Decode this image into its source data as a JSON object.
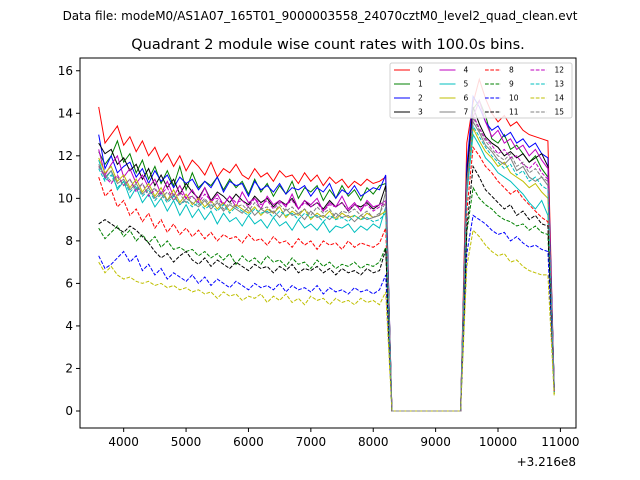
{
  "figure": {
    "suptitle": "Data file: modeM0/AS1A07_165T01_9000003558_24070cztM0_level2_quad_clean.evt"
  },
  "chart_data": {
    "type": "line",
    "title": "Quadrant 2 module wise count rates with 100.0s bins.",
    "xlabel": "",
    "ylabel": "",
    "x_offset_label": "+3.216e8",
    "xlim": [
      3300,
      11250
    ],
    "ylim": [
      -0.8,
      16.6
    ],
    "xticks": [
      4000,
      5000,
      6000,
      7000,
      8000,
      9000,
      10000,
      11000
    ],
    "yticks": [
      0,
      2,
      4,
      6,
      8,
      10,
      12,
      14,
      16
    ],
    "grid": false,
    "legend": {
      "position": "top-right",
      "columns": 4
    },
    "segments": [
      {
        "start": 3600,
        "end": 8200,
        "step": 100
      },
      {
        "start": 8300,
        "end": 9400,
        "step": 100
      },
      {
        "start": 9500,
        "end": 10800,
        "step": 100
      },
      {
        "start": 10900,
        "end": 10900,
        "step": 100
      }
    ],
    "series": [
      {
        "name": "0",
        "color": "#ff0000",
        "dashed": false,
        "seg1": [
          14.3,
          12.6,
          13.0,
          13.4,
          12.5,
          12.9,
          12.2,
          12.7,
          12.0,
          12.4,
          11.7,
          12.1,
          11.5,
          12.0,
          11.3,
          11.8,
          11.5,
          11.1,
          11.7,
          11.0,
          11.4,
          11.2,
          11.6,
          11.1,
          10.9,
          11.4,
          11.0,
          11.2,
          10.8,
          11.3,
          11.0,
          11.1,
          10.7,
          11.2,
          10.8,
          11.1,
          10.6,
          11.0,
          10.7,
          10.9,
          10.5,
          10.8,
          10.6,
          10.9,
          10.7,
          10.8,
          11.0
        ],
        "seg3": [
          12.6,
          14.5,
          15.6,
          14.7,
          14.0,
          13.6,
          13.9,
          13.4,
          13.6,
          13.2,
          13.0,
          12.9,
          12.8,
          12.7
        ],
        "end": 1.0
      },
      {
        "name": "1",
        "color": "#008000",
        "dashed": false,
        "seg1": [
          12.2,
          11.6,
          12.0,
          12.7,
          11.7,
          12.1,
          11.2,
          11.8,
          10.9,
          11.5,
          10.7,
          11.3,
          10.6,
          11.5,
          10.4,
          11.2,
          10.5,
          10.8,
          10.6,
          11.0,
          10.4,
          10.9,
          10.5,
          10.8,
          10.2,
          10.9,
          10.3,
          10.7,
          10.1,
          10.6,
          10.2,
          10.8,
          10.0,
          10.5,
          10.3,
          10.6,
          9.9,
          10.4,
          10.0,
          10.6,
          10.1,
          10.4,
          9.9,
          10.5,
          10.2,
          10.6,
          10.7
        ],
        "seg3": [
          11.2,
          14.2,
          14.6,
          13.9,
          12.8,
          12.6,
          13.0,
          12.3,
          12.5,
          12.1,
          11.7,
          12.0,
          11.4,
          11.0
        ],
        "end": 1.2
      },
      {
        "name": "2",
        "color": "#0000ff",
        "dashed": false,
        "seg1": [
          13.0,
          11.4,
          12.0,
          11.2,
          11.5,
          11.7,
          11.0,
          11.4,
          10.7,
          11.3,
          10.8,
          11.1,
          10.5,
          11.0,
          10.7,
          10.9,
          10.4,
          10.8,
          10.5,
          11.0,
          10.3,
          10.8,
          10.6,
          10.7,
          10.1,
          10.8,
          10.4,
          10.6,
          10.3,
          10.7,
          10.2,
          10.5,
          10.4,
          10.6,
          10.1,
          10.5,
          10.3,
          10.7,
          10.0,
          10.4,
          10.2,
          10.6,
          10.1,
          10.3,
          10.5,
          10.4,
          11.1
        ],
        "seg3": [
          11.5,
          14.8,
          14.3,
          13.6,
          13.2,
          13.4,
          12.9,
          13.1,
          12.6,
          12.8,
          12.4,
          12.6,
          12.1,
          11.9
        ],
        "end": 1.1
      },
      {
        "name": "3",
        "color": "#000000",
        "dashed": false,
        "seg1": [
          12.6,
          12.1,
          12.3,
          11.6,
          11.9,
          11.3,
          11.6,
          10.9,
          11.4,
          10.6,
          11.1,
          10.5,
          10.9,
          10.2,
          10.7,
          10.3,
          10.0,
          10.5,
          9.9,
          10.3,
          10.1,
          9.8,
          10.2,
          9.9,
          9.7,
          10.1,
          9.8,
          10.0,
          9.6,
          9.9,
          9.7,
          10.0,
          9.5,
          9.9,
          9.6,
          9.8,
          9.5,
          9.9,
          9.6,
          9.8,
          9.4,
          9.7,
          9.6,
          9.8,
          9.5,
          9.7,
          10.6
        ],
        "seg3": [
          11.0,
          14.3,
          13.5,
          12.9,
          12.6,
          12.4,
          12.0,
          12.2,
          11.9,
          12.1,
          11.7,
          11.9,
          12.1,
          11.5
        ],
        "end": 1.1
      },
      {
        "name": "4",
        "color": "#bf00bf",
        "dashed": false,
        "seg1": [
          12.3,
          11.1,
          11.6,
          12.0,
          11.0,
          11.4,
          10.7,
          11.1,
          10.5,
          10.9,
          10.2,
          10.8,
          10.1,
          10.6,
          10.0,
          10.4,
          9.9,
          10.5,
          9.8,
          10.2,
          9.7,
          10.1,
          9.6,
          10.3,
          9.8,
          10.0,
          9.5,
          10.1,
          9.7,
          9.9,
          9.6,
          10.2,
          9.5,
          9.9,
          9.7,
          10.0,
          9.4,
          9.8,
          9.6,
          10.1,
          9.5,
          9.8,
          9.4,
          9.9,
          9.6,
          9.7,
          9.9
        ],
        "seg3": [
          10.6,
          13.8,
          14.6,
          13.6,
          12.9,
          13.2,
          12.6,
          12.8,
          12.3,
          12.5,
          12.0,
          12.3,
          11.8,
          11.4
        ],
        "end": 1.0
      },
      {
        "name": "5",
        "color": "#00bfbf",
        "dashed": false,
        "seg1": [
          11.8,
          10.9,
          11.3,
          10.4,
          10.8,
          10.0,
          10.5,
          9.8,
          10.2,
          9.6,
          10.0,
          9.4,
          9.9,
          9.2,
          9.7,
          9.1,
          9.5,
          9.0,
          9.4,
          8.8,
          9.3,
          8.9,
          9.1,
          8.7,
          9.2,
          8.8,
          9.0,
          8.6,
          9.1,
          8.7,
          8.9,
          8.5,
          9.0,
          8.6,
          8.8,
          8.5,
          8.9,
          8.4,
          8.7,
          8.6,
          8.8,
          8.4,
          8.7,
          8.5,
          8.8,
          8.6,
          9.6
        ],
        "seg3": [
          10.2,
          13.0,
          12.5,
          11.9,
          11.6,
          11.2,
          11.0,
          10.8,
          10.5,
          10.2,
          9.8,
          9.5,
          9.9,
          9.2
        ],
        "end": 0.9
      },
      {
        "name": "6",
        "color": "#bfbf00",
        "dashed": false,
        "seg1": [
          11.9,
          11.2,
          11.5,
          10.8,
          11.1,
          10.5,
          10.9,
          10.3,
          10.7,
          10.1,
          10.5,
          9.9,
          10.4,
          9.8,
          10.2,
          9.7,
          10.0,
          9.6,
          9.9,
          9.5,
          9.8,
          9.4,
          9.7,
          9.5,
          9.3,
          9.6,
          9.2,
          9.5,
          9.3,
          9.6,
          9.1,
          9.4,
          9.2,
          9.5,
          9.0,
          9.3,
          9.1,
          9.4,
          9.0,
          9.3,
          9.1,
          9.2,
          9.0,
          9.3,
          9.1,
          9.2,
          9.4
        ],
        "seg3": [
          10.4,
          13.3,
          12.7,
          12.2,
          11.9,
          11.5,
          11.7,
          11.2,
          11.0,
          10.8,
          10.5,
          10.7,
          10.3,
          10.0
        ],
        "end": 0.8
      },
      {
        "name": "7",
        "color": "#808080",
        "dashed": false,
        "seg1": [
          11.6,
          11.0,
          11.3,
          10.7,
          10.9,
          10.4,
          10.7,
          10.2,
          10.5,
          10.0,
          10.3,
          9.9,
          10.2,
          9.7,
          10.0,
          9.8,
          9.6,
          9.9,
          9.5,
          9.8,
          9.4,
          9.7,
          9.5,
          9.3,
          9.6,
          9.2,
          9.5,
          9.3,
          9.4,
          9.1,
          9.5,
          9.2,
          9.3,
          9.0,
          9.4,
          9.1,
          9.2,
          9.0,
          9.3,
          9.1,
          9.2,
          8.9,
          9.2,
          9.0,
          9.1,
          9.2,
          10.3
        ],
        "seg3": [
          10.8,
          13.6,
          13.1,
          12.5,
          12.2,
          11.8,
          11.6,
          11.9,
          11.3,
          11.5,
          11.0,
          10.8,
          11.0,
          10.6
        ],
        "end": 1.0
      },
      {
        "name": "8",
        "color": "#ff0000",
        "dashed": true,
        "seg1": [
          11.0,
          10.1,
          10.4,
          9.6,
          9.9,
          9.2,
          9.5,
          8.9,
          9.3,
          8.6,
          9.0,
          8.4,
          8.8,
          8.3,
          8.6,
          8.2,
          8.5,
          8.1,
          8.4,
          8.0,
          8.3,
          8.1,
          8.2,
          7.9,
          8.3,
          8.0,
          8.1,
          7.8,
          8.2,
          7.9,
          8.0,
          7.7,
          8.1,
          7.8,
          8.0,
          7.6,
          8.0,
          7.8,
          7.9,
          7.6,
          8.0,
          7.7,
          7.9,
          7.8,
          7.7,
          7.9,
          8.6
        ],
        "seg3": [
          9.4,
          12.4,
          12.0,
          11.5,
          11.2,
          10.8,
          10.5,
          10.2,
          10.4,
          10.0,
          9.7,
          9.4,
          9.1,
          8.9
        ],
        "end": 0.9
      },
      {
        "name": "9",
        "color": "#008000",
        "dashed": true,
        "seg1": [
          8.6,
          8.1,
          8.4,
          8.7,
          8.2,
          8.5,
          8.0,
          8.3,
          7.9,
          8.2,
          7.7,
          8.0,
          7.6,
          7.7,
          7.5,
          7.6,
          7.3,
          7.5,
          7.2,
          7.4,
          7.1,
          7.4,
          6.9,
          7.3,
          7.0,
          7.2,
          6.9,
          7.3,
          7.0,
          7.1,
          6.8,
          7.2,
          6.9,
          7.0,
          6.7,
          7.1,
          6.8,
          7.0,
          6.7,
          6.9,
          6.8,
          7.0,
          6.7,
          6.9,
          6.8,
          7.0,
          7.7
        ],
        "seg3": [
          8.4,
          10.5,
          10.0,
          9.7,
          9.5,
          9.2,
          9.0,
          8.9,
          8.7,
          8.8,
          8.5,
          8.7,
          8.4,
          8.3
        ],
        "end": 0.8
      },
      {
        "name": "10",
        "color": "#0000ff",
        "dashed": true,
        "seg1": [
          7.3,
          6.7,
          6.9,
          7.2,
          7.5,
          7.0,
          7.3,
          6.6,
          6.9,
          6.4,
          6.7,
          6.2,
          6.5,
          6.3,
          6.1,
          6.4,
          6.0,
          6.3,
          5.9,
          6.2,
          6.0,
          5.8,
          6.1,
          5.9,
          5.7,
          6.0,
          5.8,
          5.9,
          5.7,
          6.0,
          5.6,
          5.9,
          5.7,
          5.8,
          5.6,
          5.9,
          5.5,
          5.8,
          5.6,
          5.7,
          5.5,
          5.8,
          5.6,
          5.7,
          5.5,
          5.7,
          6.4
        ],
        "seg3": [
          7.4,
          9.2,
          9.0,
          8.8,
          8.5,
          8.3,
          8.4,
          8.0,
          8.2,
          7.9,
          7.7,
          7.8,
          7.6,
          7.5
        ],
        "end": 0.9
      },
      {
        "name": "11",
        "color": "#000000",
        "dashed": true,
        "seg1": [
          8.8,
          9.0,
          8.8,
          8.6,
          8.4,
          8.7,
          8.5,
          8.2,
          7.9,
          7.5,
          7.2,
          7.4,
          7.0,
          7.3,
          7.5,
          7.1,
          6.9,
          7.2,
          6.8,
          7.1,
          6.9,
          6.7,
          7.0,
          6.8,
          6.6,
          6.9,
          6.7,
          6.8,
          6.5,
          6.8,
          6.6,
          6.9,
          6.5,
          6.7,
          6.6,
          6.8,
          6.5,
          6.7,
          6.4,
          6.7,
          6.5,
          6.6,
          6.4,
          6.7,
          6.5,
          6.6,
          7.6
        ],
        "seg3": [
          8.6,
          11.5,
          11.0,
          10.4,
          10.1,
          9.8,
          9.5,
          9.7,
          9.2,
          9.4,
          9.0,
          9.2,
          8.8,
          8.7
        ],
        "end": 1.0
      },
      {
        "name": "12",
        "color": "#bf00bf",
        "dashed": true,
        "seg1": [
          11.5,
          11.0,
          10.7,
          11.1,
          10.6,
          10.9,
          10.3,
          10.7,
          10.1,
          10.4,
          10.2,
          10.5,
          9.9,
          10.3,
          10.0,
          10.1,
          9.8,
          10.2,
          9.9,
          10.0,
          9.7,
          10.1,
          9.8,
          9.9,
          9.6,
          10.0,
          9.7,
          9.9,
          9.5,
          9.8,
          9.7,
          9.9,
          9.5,
          9.8,
          9.6,
          9.8,
          9.4,
          9.7,
          9.6,
          9.8,
          9.4,
          9.7,
          9.5,
          9.7,
          9.4,
          9.6,
          9.8
        ],
        "seg3": [
          10.5,
          13.9,
          13.3,
          12.8,
          12.5,
          12.1,
          12.3,
          11.9,
          12.0,
          11.6,
          11.4,
          11.7,
          11.2,
          10.9
        ],
        "end": 1.0
      },
      {
        "name": "13",
        "color": "#00bfbf",
        "dashed": true,
        "seg1": [
          11.4,
          10.8,
          11.1,
          10.5,
          10.8,
          10.3,
          10.6,
          10.1,
          10.4,
          9.9,
          10.2,
          9.8,
          10.1,
          9.7,
          9.9,
          9.6,
          9.8,
          9.5,
          9.7,
          9.4,
          9.7,
          9.3,
          9.6,
          9.4,
          9.2,
          9.5,
          9.3,
          9.4,
          9.1,
          9.4,
          9.2,
          9.3,
          9.0,
          9.3,
          9.1,
          9.2,
          8.9,
          9.2,
          9.0,
          9.1,
          8.9,
          9.2,
          9.0,
          9.1,
          8.9,
          9.0,
          9.3
        ],
        "seg3": [
          10.2,
          13.4,
          12.9,
          12.4,
          12.0,
          11.7,
          11.4,
          11.6,
          11.1,
          11.3,
          10.8,
          11.0,
          10.6,
          10.4
        ],
        "end": 0.9
      },
      {
        "name": "14",
        "color": "#bfbf00",
        "dashed": true,
        "seg1": [
          7.0,
          6.5,
          6.8,
          6.4,
          6.2,
          6.3,
          6.1,
          6.0,
          6.1,
          5.9,
          6.0,
          5.8,
          5.9,
          5.7,
          5.8,
          5.6,
          5.7,
          5.5,
          5.6,
          5.3,
          5.6,
          5.4,
          5.5,
          5.2,
          5.4,
          5.3,
          5.5,
          5.1,
          5.4,
          5.2,
          5.5,
          5.1,
          5.3,
          5.0,
          5.4,
          5.2,
          5.3,
          5.0,
          5.3,
          5.1,
          5.2,
          5.0,
          5.3,
          5.1,
          5.2,
          5.0,
          5.6
        ],
        "seg3": [
          6.8,
          8.5,
          8.2,
          7.8,
          7.5,
          7.3,
          7.4,
          7.0,
          7.1,
          6.8,
          6.6,
          6.5,
          6.4,
          6.4
        ],
        "end": 0.7
      },
      {
        "name": "15",
        "color": "#808080",
        "dashed": true,
        "seg1": [
          11.5,
          11.1,
          10.8,
          11.0,
          10.6,
          10.9,
          10.4,
          10.7,
          10.2,
          10.5,
          10.0,
          10.3,
          9.9,
          10.2,
          9.8,
          10.1,
          9.7,
          10.0,
          9.6,
          9.9,
          9.5,
          9.8,
          9.6,
          9.7,
          9.4,
          9.8,
          9.5,
          9.6,
          9.3,
          9.7,
          9.4,
          9.6,
          9.3,
          9.5,
          9.2,
          9.6,
          9.3,
          9.5,
          9.1,
          9.4,
          9.3,
          9.5,
          9.2,
          9.4,
          9.1,
          9.3,
          9.8
        ],
        "seg3": [
          10.6,
          13.8,
          13.2,
          12.7,
          12.3,
          12.0,
          11.8,
          12.1,
          11.5,
          11.7,
          11.2,
          11.4,
          11.0,
          10.8
        ],
        "end": 1.0
      }
    ]
  }
}
